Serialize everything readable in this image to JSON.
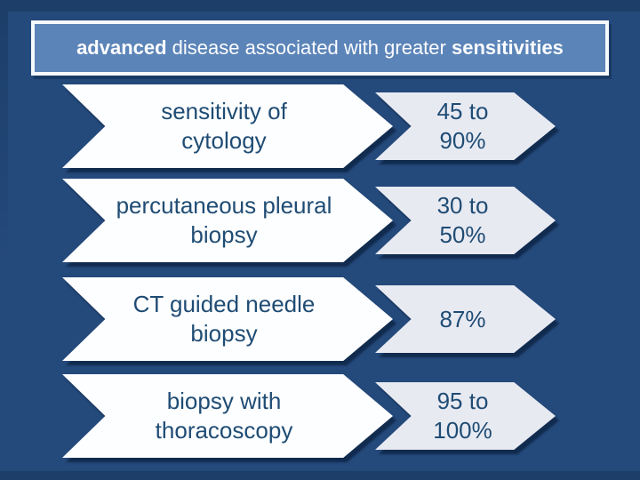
{
  "title": {
    "bold_start": "advanced",
    "middle": " disease associated with greater ",
    "bold_end": "sensitivities"
  },
  "rows": [
    {
      "label": "sensitivity of\ncytology",
      "value": "45 to\n90%"
    },
    {
      "label": "percutaneous pleural\nbiopsy",
      "value": "30 to\n50%"
    },
    {
      "label": "CT guided needle\nbiopsy",
      "value": "87%"
    },
    {
      "label": "biopsy with\nthoracoscopy",
      "value": "95 to\n100%"
    }
  ],
  "colors": {
    "background": "#24497b",
    "background_edge": "#1c3e69",
    "title_fill": "#5b84b8",
    "title_border": "#f6f9fc",
    "title_text": "#fcfdff",
    "arrow_label_fill": "#fdfeff",
    "arrow_value_fill": "#e8eaf2",
    "arrow_text": "#1f4c74",
    "shadow": "#0d2646"
  }
}
